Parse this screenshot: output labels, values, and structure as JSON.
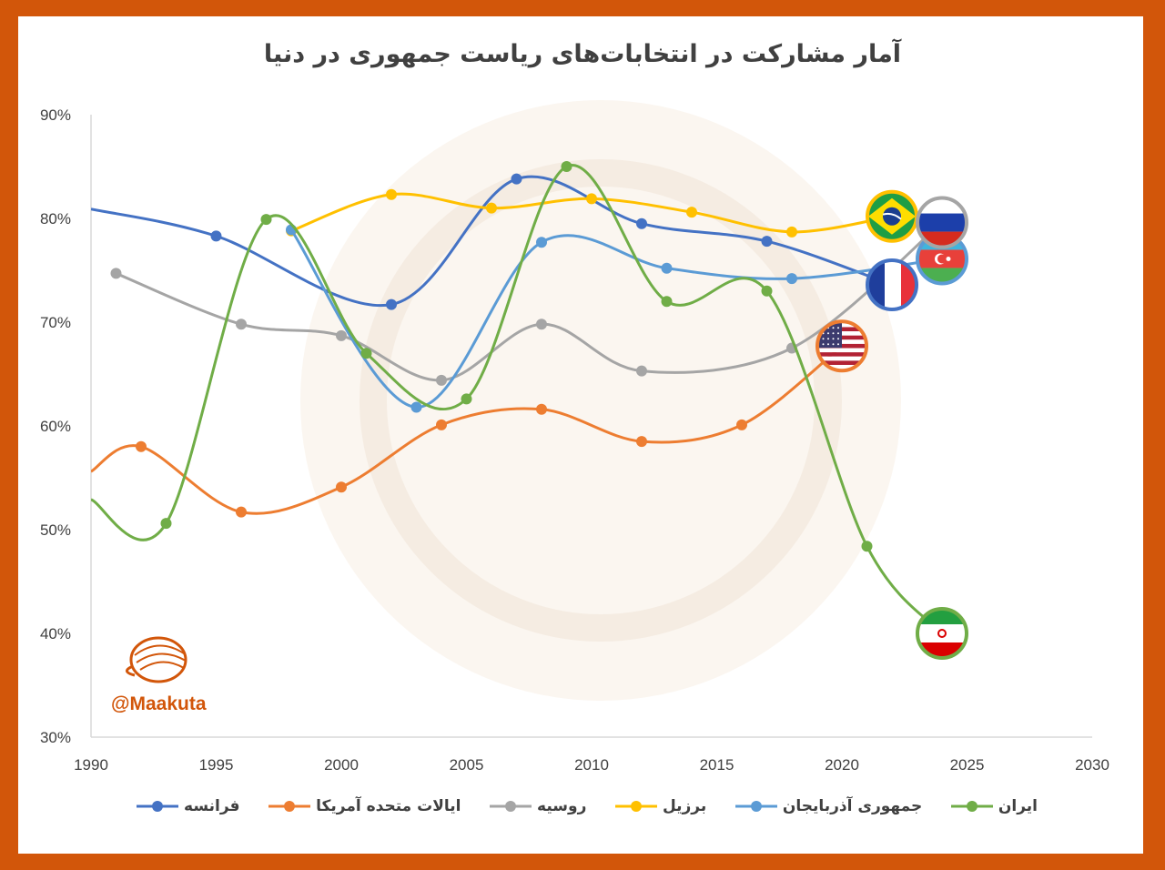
{
  "title": "آمار مشارکت در انتخابات‌های ریاست جمهوری در دنیا",
  "watermark": "@Maakuta",
  "colors": {
    "frame": "#D2560A",
    "background": "#FFFFFF"
  },
  "chart_data": {
    "type": "line",
    "title": "آمار مشارکت در انتخابات‌های ریاست جمهوری در دنیا",
    "xlim": [
      1990,
      2030
    ],
    "ylim": [
      30,
      90
    ],
    "x_ticks": [
      "1990",
      "1995",
      "2000",
      "2005",
      "2010",
      "2015",
      "2020",
      "2025",
      "2030"
    ],
    "y_ticks": [
      "30%",
      "40%",
      "50%",
      "60%",
      "70%",
      "80%",
      "90%"
    ],
    "grid": false,
    "legend_position": "bottom",
    "smooth": true,
    "series": [
      {
        "name": "ایران",
        "color": "#70AD47",
        "flag": "iran",
        "points": [
          [
            1990,
            52.9
          ],
          [
            1993,
            50.6
          ],
          [
            1997,
            79.9
          ],
          [
            2001,
            67.0
          ],
          [
            2005,
            62.6
          ],
          [
            2009,
            85.0
          ],
          [
            2013,
            72.0
          ],
          [
            2017,
            73.0
          ],
          [
            2021,
            48.4
          ],
          [
            2024,
            40.0
          ]
        ]
      },
      {
        "name": "جمهوری آذربایجان",
        "color": "#5B9BD5",
        "flag": "azerbaijan",
        "points": [
          [
            1998,
            78.9
          ],
          [
            2003,
            61.8
          ],
          [
            2008,
            77.7
          ],
          [
            2013,
            75.2
          ],
          [
            2018,
            74.2
          ],
          [
            2024,
            76.1
          ]
        ]
      },
      {
        "name": "برزیل",
        "color": "#FFC000",
        "flag": "brazil",
        "points": [
          [
            1998,
            78.8
          ],
          [
            2002,
            82.3
          ],
          [
            2006,
            81.0
          ],
          [
            2010,
            81.9
          ],
          [
            2014,
            80.6
          ],
          [
            2018,
            78.7
          ],
          [
            2022,
            80.2
          ]
        ]
      },
      {
        "name": "روسیه",
        "color": "#A5A5A5",
        "flag": "russia",
        "points": [
          [
            1991,
            74.7
          ],
          [
            1996,
            69.8
          ],
          [
            2000,
            68.7
          ],
          [
            2004,
            64.4
          ],
          [
            2008,
            69.8
          ],
          [
            2012,
            65.3
          ],
          [
            2018,
            67.5
          ],
          [
            2024,
            79.6
          ]
        ]
      },
      {
        "name": "ایالات متحده آمریکا",
        "color": "#ED7D31",
        "flag": "usa",
        "points": [
          [
            1990,
            55.6
          ],
          [
            1992,
            58.0
          ],
          [
            1996,
            51.7
          ],
          [
            2000,
            54.1
          ],
          [
            2004,
            60.1
          ],
          [
            2008,
            61.6
          ],
          [
            2012,
            58.5
          ],
          [
            2016,
            60.1
          ],
          [
            2020,
            67.7
          ]
        ]
      },
      {
        "name": "فرانسه",
        "color": "#4472C4",
        "flag": "france",
        "points": [
          [
            1990,
            80.9
          ],
          [
            1995,
            78.3
          ],
          [
            2002,
            71.7
          ],
          [
            2007,
            83.8
          ],
          [
            2012,
            79.5
          ],
          [
            2017,
            77.8
          ],
          [
            2022,
            73.6
          ]
        ]
      }
    ]
  }
}
